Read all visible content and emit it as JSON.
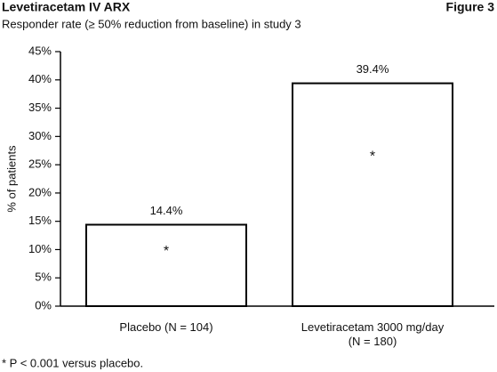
{
  "chart_data": {
    "type": "bar",
    "title": "Levetiracetam IV ARX",
    "figure_label": "Figure 3",
    "subtitle": "Responder rate (≥ 50% reduction from baseline) in study 3",
    "y_label": "% of patients",
    "categories": [
      "Placebo (N = 104)",
      "Levetiracetam 3000 mg/day\n(N = 180)"
    ],
    "values": [
      14.4,
      39.4
    ],
    "value_labels": [
      "14.4%",
      "39.4%"
    ],
    "annotations": [
      "*",
      "*"
    ],
    "footnote": "* P < 0.001 versus placebo.",
    "color": "#ffffff",
    "ylim": [
      0,
      45
    ],
    "yticks": [
      {
        "value": 0,
        "label": "0%"
      },
      {
        "value": 5,
        "label": "5%"
      },
      {
        "value": 10,
        "label": "10%"
      },
      {
        "value": 15,
        "label": "15%"
      },
      {
        "value": 20,
        "label": "20%"
      },
      {
        "value": 25,
        "label": "25%"
      },
      {
        "value": 30,
        "label": "30%"
      },
      {
        "value": 35,
        "label": "35%"
      },
      {
        "value": 40,
        "label": "40%"
      },
      {
        "value": 45,
        "label": "45%"
      }
    ],
    "grid": false
  }
}
